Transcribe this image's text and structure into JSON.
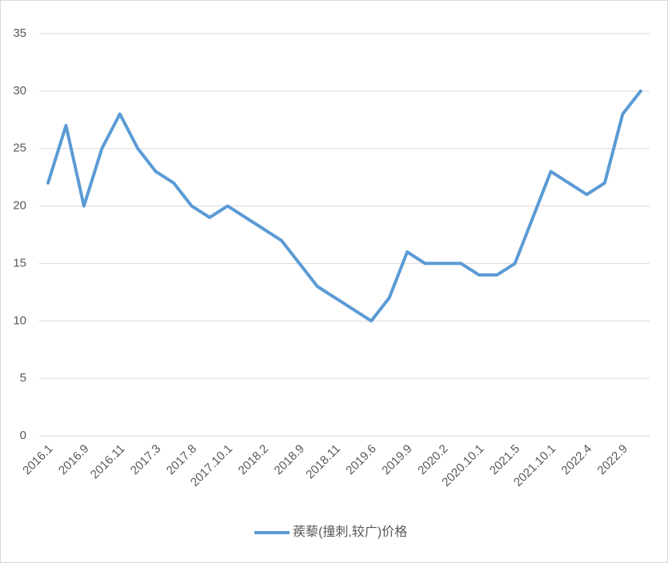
{
  "chart_data": {
    "type": "line",
    "categories": [
      "2016.1",
      null,
      "2016.9",
      null,
      "2016.11",
      null,
      "2017.3",
      null,
      "2017.8",
      null,
      "2017.10.1",
      null,
      "2018.2",
      null,
      "2018.9",
      null,
      "2018.11",
      null,
      "2019.6",
      null,
      "2019.9",
      null,
      "2020.2",
      null,
      "2020.10.1",
      null,
      "2021.5",
      null,
      "2021.10.1",
      null,
      "2022.4",
      null,
      "2022.9",
      null
    ],
    "series": [
      {
        "name": "蒺藜(撞刺,较广)价格",
        "color": "#5b9bd5",
        "values": [
          22,
          27,
          20,
          25,
          28,
          25,
          23,
          22,
          20,
          19,
          20,
          19,
          18,
          17,
          15,
          13,
          12,
          11,
          10,
          12,
          16,
          15,
          15,
          15,
          14,
          14,
          15,
          19,
          23,
          22,
          21,
          22,
          28,
          30
        ]
      }
    ],
    "ylim": [
      0,
      35
    ],
    "yticks": [
      0,
      5,
      10,
      15,
      20,
      25,
      30,
      35
    ],
    "grid": true,
    "legend": "bottom"
  }
}
